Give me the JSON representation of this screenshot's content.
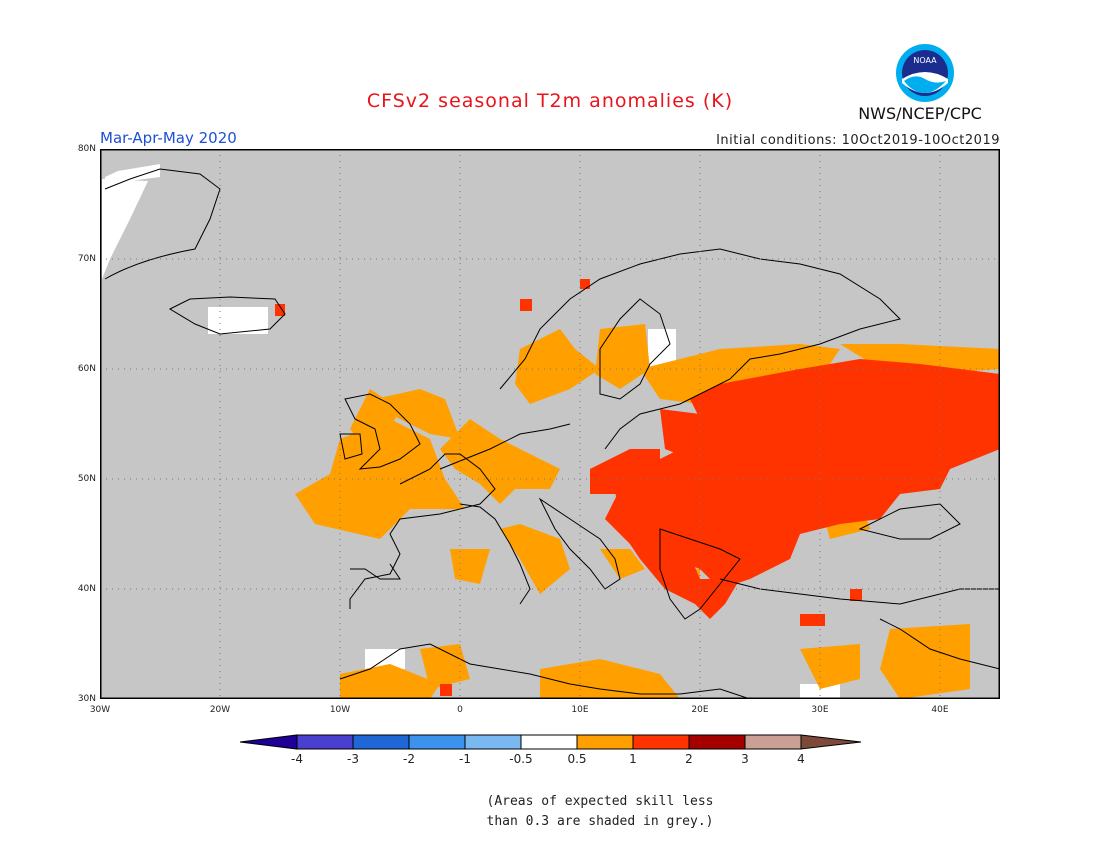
{
  "header": {
    "title": "CFSv2 seasonal T2m anomalies (K)",
    "season": "Mar-Apr-May 2020",
    "initial_conditions": "Initial conditions: 10Oct2019-10Oct2019",
    "agency": "NWS/NCEP/CPC",
    "logo_text": "NOAA"
  },
  "map": {
    "region": "Europe",
    "extent": {
      "lon_min": -30,
      "lon_max": 45,
      "lat_min": 30,
      "lat_max": 80
    },
    "lat_ticks": [
      "30N",
      "40N",
      "50N",
      "60N",
      "70N",
      "80N"
    ],
    "lon_ticks": [
      "30W",
      "20W",
      "10W",
      "0",
      "10E",
      "20E",
      "30E",
      "40E"
    ],
    "grid": "dotted",
    "anomaly_regions": [
      {
        "area": "Eastern Europe / western Russia / Ukraine / Balkans",
        "category": "1 to 2"
      },
      {
        "area": "Western and central Europe, Scandinavia, British Isles",
        "category": "0.5 to 1"
      },
      {
        "area": "North Africa coast, Middle East",
        "category": "0.5 to 1"
      },
      {
        "area": "Parts of Greenland, Iceland, Sweden, Atlas",
        "category": "-0.5 to 0.5"
      },
      {
        "area": "Ocean and remaining land",
        "category": "low skill (grey)"
      }
    ]
  },
  "colorbar": {
    "labels": [
      "-4",
      "-3",
      "-2",
      "-1",
      "-0.5",
      "0.5",
      "1",
      "2",
      "3",
      "4"
    ],
    "colors": [
      "#1e0099",
      "#4a3fd1",
      "#1f66d6",
      "#3b93ee",
      "#7ab8f2",
      "#ffffff",
      "#ff9f00",
      "#ff3300",
      "#a50000",
      "#c9a093",
      "#7d4a3a"
    ]
  },
  "colors": {
    "title": "#e8141c",
    "season": "#1f4fd6",
    "grey_mask": "#c6c6c6",
    "orange": "#ff9f00",
    "red": "#ff3300"
  },
  "footnote": [
    "(Areas of expected skill less",
    "than 0.3 are shaded in grey.)"
  ]
}
